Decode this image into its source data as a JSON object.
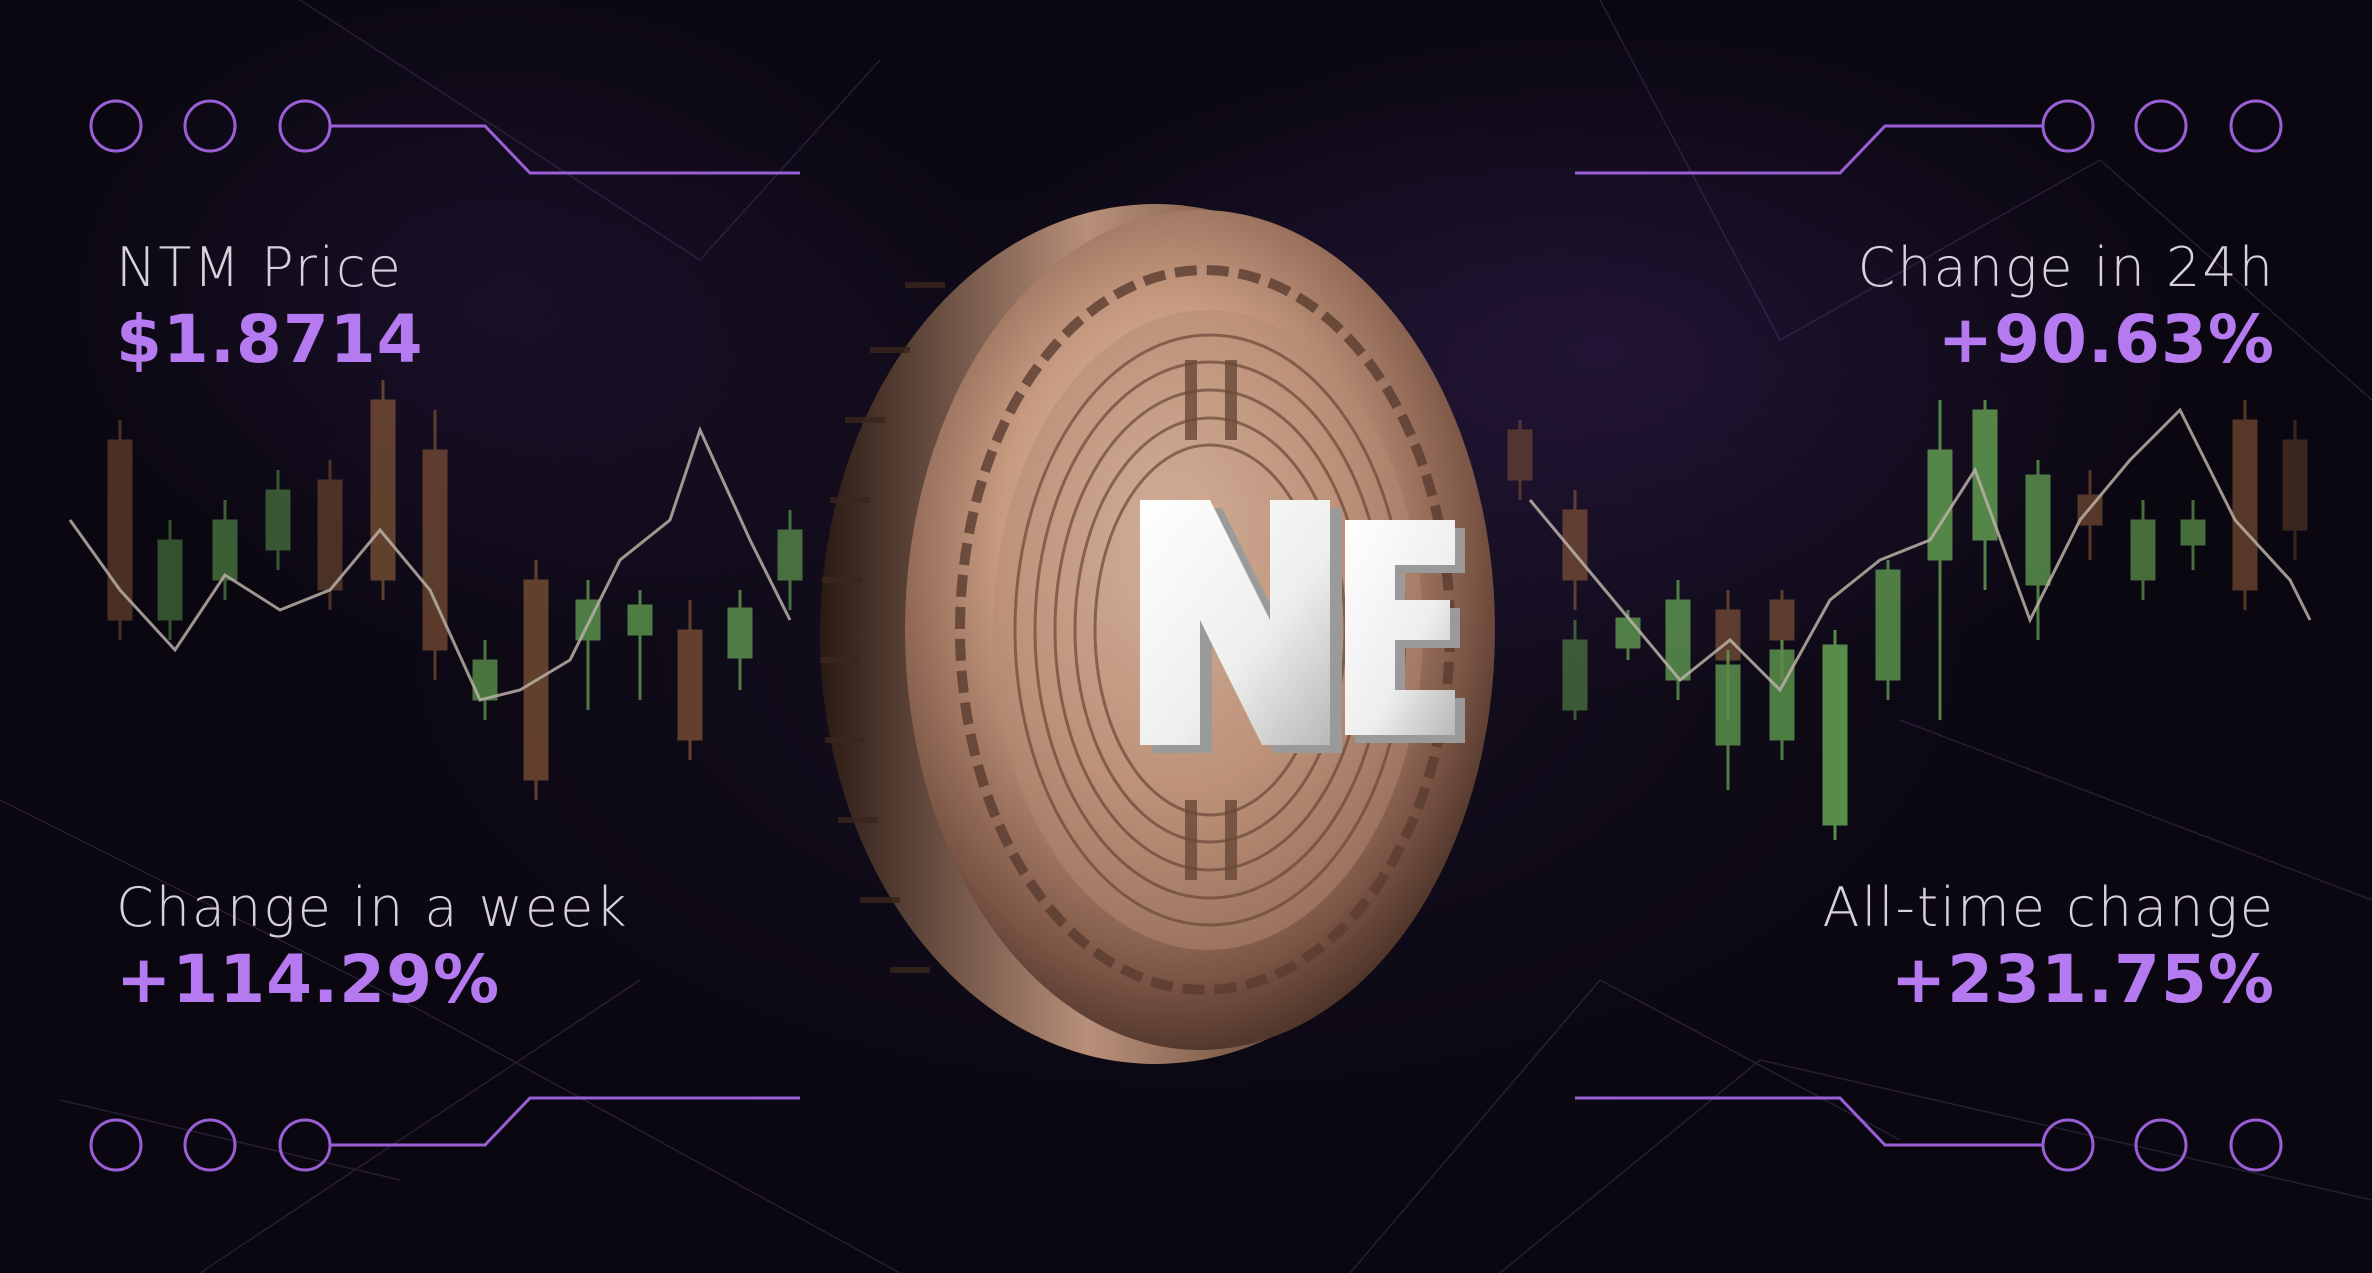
{
  "stats": {
    "price": {
      "label": "NTM Price",
      "value": "$1.8714"
    },
    "change_24h": {
      "label": "Change in 24h",
      "value": "+90.63%"
    },
    "change_week": {
      "label": "Change in a week",
      "value": "+114.29%"
    },
    "change_all_time": {
      "label": "All-time change",
      "value": "+231.75%"
    }
  },
  "colors": {
    "accent": "#b57aef",
    "label": "#d6d1dc",
    "candle_up": "#6fb55a",
    "candle_down": "#8a5a3a",
    "coin": "#c79a80"
  },
  "icons": {
    "coin": "ntm-coin-icon",
    "decor_circle": "circle-outline-icon"
  }
}
